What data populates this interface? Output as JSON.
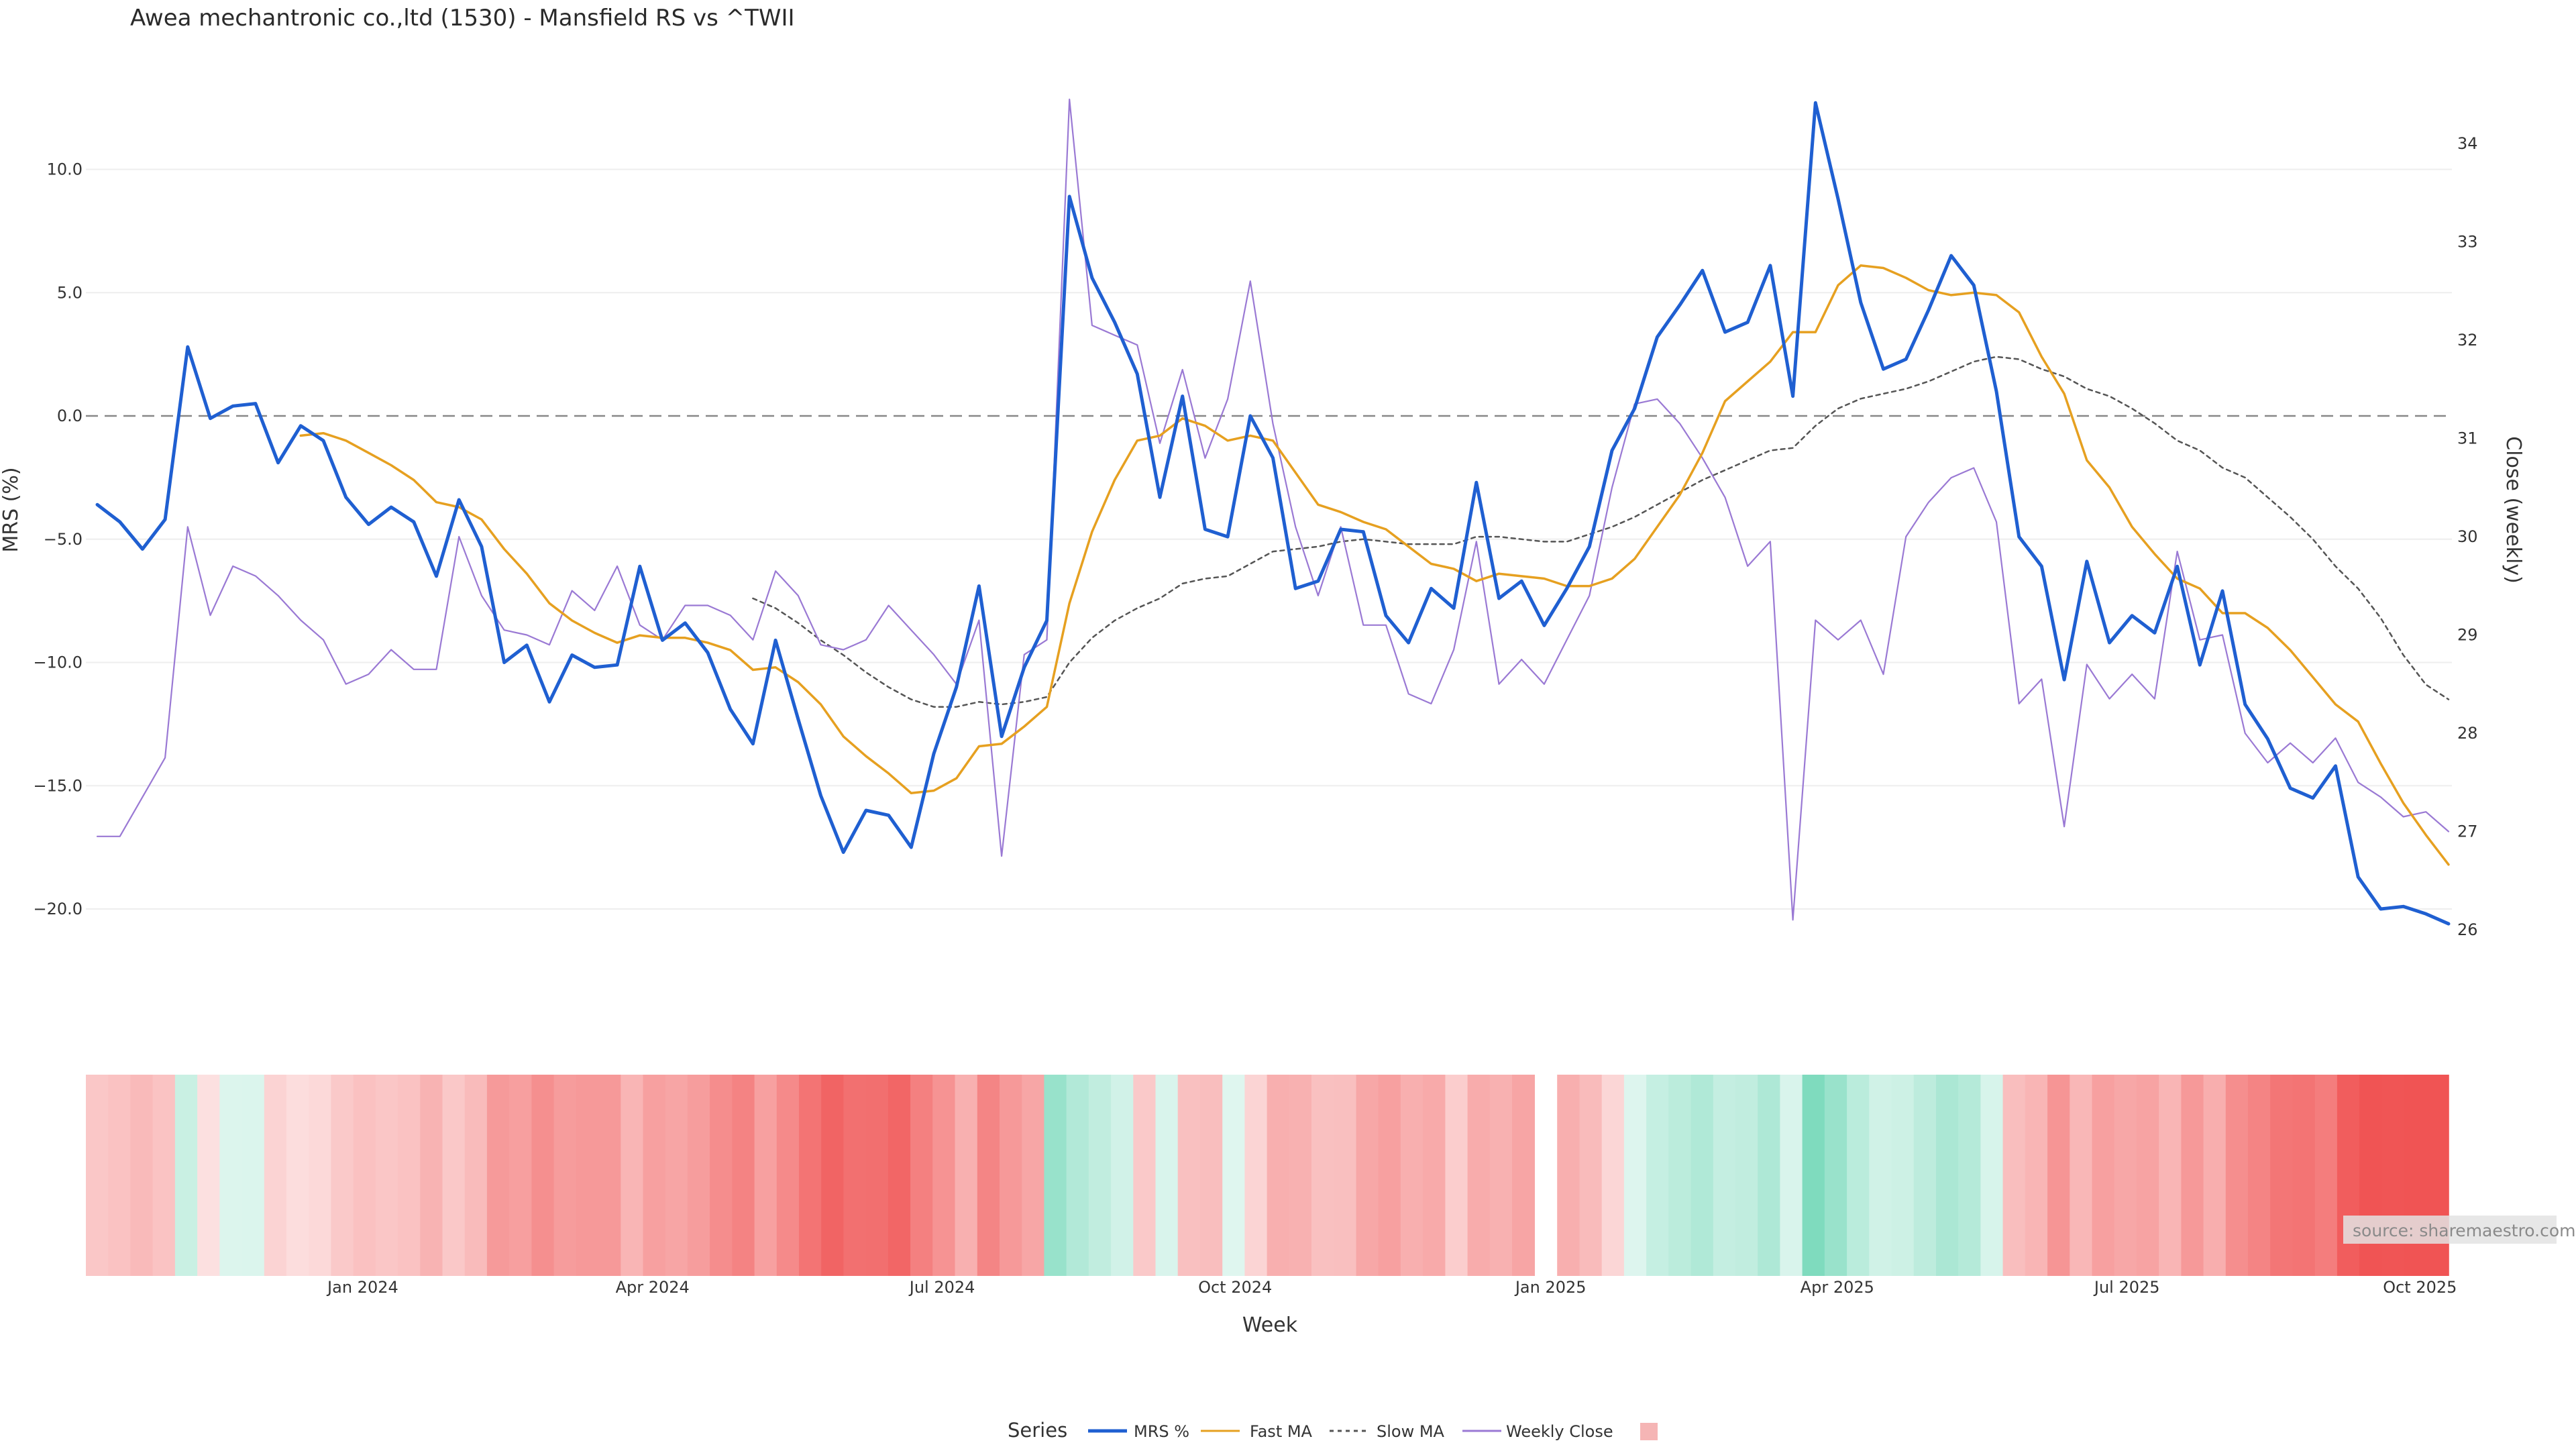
{
  "chart_data": {
    "type": "line",
    "title": "Awea mechantronic co.,ltd (1530) - Mansfield RS vs ^TWII",
    "xlabel": "Week",
    "ylabel": "MRS (%)",
    "y2label": "Close (weekly)",
    "ylim": [
      -23.5,
      13.5
    ],
    "y2lim": [
      25.5,
      34.8
    ],
    "yticks": [
      "10.0",
      "5.0",
      "0.0",
      "−5.0",
      "−10.0",
      "−15.0",
      "−20.0"
    ],
    "y2ticks": [
      "34",
      "33",
      "32",
      "31",
      "30",
      "29",
      "28",
      "27",
      "26"
    ],
    "x_start": "2023-10-06",
    "week_step_days": 7,
    "x_tick_labels": [
      "Jan 2024",
      "Apr 2024",
      "Jul 2024",
      "Oct 2024",
      "Jan 2025",
      "Apr 2025",
      "Jul 2025",
      "Oct 2025"
    ],
    "x_tick_dates": [
      "2024-01-01",
      "2024-04-01",
      "2024-07-01",
      "2024-10-01",
      "2025-01-01",
      "2025-04-01",
      "2025-07-01",
      "2025-10-01"
    ],
    "zero_line": 0,
    "grid": true,
    "series": [
      {
        "name": "MRS %",
        "axis": "left",
        "color": "#1f5fd1",
        "values": [
          -3.6,
          -4.3,
          -5.4,
          -4.2,
          2.8,
          -0.1,
          0.4,
          0.5,
          -1.9,
          -0.4,
          -1.0,
          -3.3,
          -4.4,
          -3.7,
          -4.3,
          -6.5,
          -3.4,
          -5.3,
          -10.0,
          -9.3,
          -11.6,
          -9.7,
          -10.2,
          -10.1,
          -6.1,
          -9.1,
          -8.4,
          -9.6,
          -11.9,
          -13.3,
          -9.1,
          -12.3,
          -15.4,
          -17.7,
          -16.0,
          -16.2,
          -17.5,
          -13.7,
          -11.0,
          -6.9,
          -13.0,
          -10.2,
          -8.3,
          8.9,
          5.6,
          3.8,
          1.7,
          -3.3,
          0.8,
          -4.6,
          -4.9,
          0.0,
          -1.7,
          -7.0,
          -6.7,
          -4.6,
          -4.7,
          -8.1,
          -9.2,
          -7.0,
          -7.8,
          -2.7,
          -7.4,
          -6.7,
          -8.5,
          -7.0,
          -5.3,
          -1.4,
          0.3,
          3.2,
          4.5,
          5.9,
          3.4,
          3.8,
          6.1,
          0.8,
          12.7,
          8.8,
          4.6,
          1.9,
          2.3,
          4.3,
          6.5,
          5.3,
          1.0,
          -4.9,
          -6.1,
          -10.7,
          -5.9,
          -9.2,
          -8.1,
          -8.8,
          -6.1,
          -10.1,
          -7.1,
          -11.7,
          -13.1,
          -15.1,
          -15.5,
          -14.2,
          -18.7,
          -20.0,
          -19.9,
          -20.2,
          -20.6
        ]
      },
      {
        "name": "Fast MA",
        "axis": "left",
        "color": "#e6a020",
        "values": [
          null,
          null,
          null,
          null,
          null,
          null,
          null,
          null,
          null,
          -0.8,
          -0.7,
          -1.0,
          -1.5,
          -2.0,
          -2.6,
          -3.5,
          -3.7,
          -4.2,
          -5.4,
          -6.4,
          -7.6,
          -8.3,
          -8.8,
          -9.2,
          -8.9,
          -9.0,
          -9.0,
          -9.2,
          -9.5,
          -10.3,
          -10.2,
          -10.8,
          -11.7,
          -13.0,
          -13.8,
          -14.5,
          -15.3,
          -15.2,
          -14.7,
          -13.4,
          -13.3,
          -12.6,
          -11.8,
          -7.6,
          -4.7,
          -2.6,
          -1.0,
          -0.8,
          -0.1,
          -0.4,
          -1.0,
          -0.8,
          -1.0,
          -2.3,
          -3.6,
          -3.9,
          -4.3,
          -4.6,
          -5.3,
          -6.0,
          -6.2,
          -6.7,
          -6.4,
          -6.5,
          -6.6,
          -6.9,
          -6.9,
          -6.6,
          -5.8,
          -4.5,
          -3.2,
          -1.5,
          0.6,
          1.4,
          2.2,
          3.4,
          3.4,
          5.3,
          6.1,
          6.0,
          5.6,
          5.1,
          4.9,
          5.0,
          4.9,
          4.2,
          2.4,
          0.9,
          -1.8,
          -2.9,
          -4.5,
          -5.6,
          -6.6,
          -7.0,
          -8.0,
          -8.0,
          -8.6,
          -9.5,
          -10.6,
          -11.7,
          -12.4,
          -14.1,
          -15.7,
          -17.0,
          -18.2
        ]
      },
      {
        "name": "Slow MA",
        "axis": "left",
        "color": "#555555",
        "values": [
          null,
          null,
          null,
          null,
          null,
          null,
          null,
          null,
          null,
          null,
          null,
          null,
          null,
          null,
          null,
          null,
          null,
          null,
          null,
          null,
          null,
          null,
          null,
          null,
          null,
          null,
          null,
          null,
          null,
          -7.4,
          -7.8,
          -8.4,
          -9.1,
          -9.7,
          -10.4,
          -11.0,
          -11.5,
          -11.8,
          -11.8,
          -11.6,
          -11.7,
          -11.6,
          -11.4,
          -10.0,
          -9.0,
          -8.3,
          -7.8,
          -7.4,
          -6.8,
          -6.6,
          -6.5,
          -6.0,
          -5.5,
          -5.4,
          -5.3,
          -5.1,
          -5.0,
          -5.1,
          -5.2,
          -5.2,
          -5.2,
          -4.9,
          -4.9,
          -5.0,
          -5.1,
          -5.1,
          -4.8,
          -4.5,
          -4.1,
          -3.6,
          -3.1,
          -2.6,
          -2.2,
          -1.8,
          -1.4,
          -1.3,
          -0.4,
          0.3,
          0.7,
          0.9,
          1.1,
          1.4,
          1.8,
          2.2,
          2.4,
          2.3,
          1.9,
          1.6,
          1.1,
          0.8,
          0.3,
          -0.3,
          -1.0,
          -1.4,
          -2.1,
          -2.5,
          -3.3,
          -4.1,
          -5.0,
          -6.1,
          -7.0,
          -8.2,
          -9.7,
          -10.9,
          -11.5
        ]
      },
      {
        "name": "Weekly Close",
        "axis": "right",
        "color": "#9a79d4",
        "values": [
          26.95,
          26.95,
          27.35,
          27.75,
          30.1,
          29.2,
          29.7,
          29.6,
          29.4,
          29.15,
          28.95,
          28.5,
          28.6,
          28.85,
          28.65,
          28.65,
          30.0,
          29.4,
          29.05,
          29.0,
          28.9,
          29.45,
          29.25,
          29.7,
          29.1,
          28.95,
          29.3,
          29.3,
          29.2,
          28.95,
          29.65,
          29.4,
          28.9,
          28.85,
          28.95,
          29.3,
          29.05,
          28.8,
          28.5,
          29.15,
          26.75,
          28.8,
          28.95,
          34.45,
          32.15,
          32.05,
          31.95,
          30.95,
          31.7,
          30.8,
          31.4,
          32.6,
          31.15,
          30.1,
          29.4,
          30.1,
          29.1,
          29.1,
          28.4,
          28.3,
          28.85,
          29.95,
          28.5,
          28.75,
          28.5,
          28.95,
          29.4,
          30.5,
          31.35,
          31.4,
          31.15,
          30.8,
          30.4,
          29.7,
          29.95,
          26.1,
          29.15,
          28.95,
          29.15,
          28.6,
          30.0,
          30.35,
          30.6,
          30.7,
          30.15,
          28.3,
          28.55,
          27.05,
          28.7,
          28.35,
          28.6,
          28.35,
          29.85,
          28.95,
          29.0,
          28.0,
          27.7,
          27.9,
          27.7,
          27.95,
          27.5,
          27.35,
          27.15,
          27.2,
          27.0
        ]
      }
    ],
    "heatmap_strip": {
      "description_of_values": "Weekly MRS tint (same as MRS %)",
      "palette_positive": "#7fdbbe",
      "palette_negative": "#f05454",
      "gap_after_index": 64
    },
    "legend": {
      "title": "Series",
      "position": "bottom-center",
      "entries": [
        "MRS %",
        "Fast MA",
        "Slow MA",
        "Weekly Close",
        ""
      ]
    },
    "watermark": "source: sharemaestro.com"
  }
}
